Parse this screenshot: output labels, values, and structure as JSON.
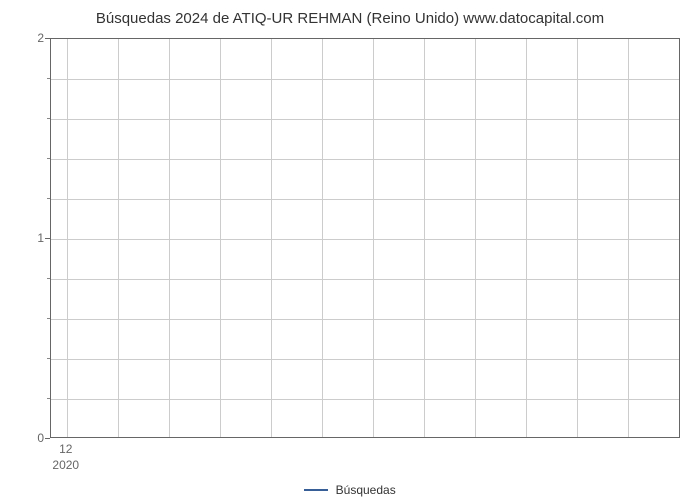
{
  "chart": {
    "type": "line",
    "title": "Búsquedas 2024 de ATIQ-UR REHMAN (Reino Unido) www.datocapital.com",
    "title_fontsize": 15,
    "title_color": "#333333",
    "background_color": "#ffffff",
    "plot_border_color": "#666666",
    "grid_color": "#cccccc",
    "y_axis": {
      "min": 0,
      "max": 2,
      "major_ticks": [
        0,
        1,
        2
      ],
      "minor_tick_count": 4,
      "label_color": "#666666",
      "label_fontsize": 12
    },
    "x_axis": {
      "tick_labels": [
        "12"
      ],
      "year_labels": [
        "2020"
      ],
      "tick_positions_pct": [
        2.5
      ],
      "vertical_gridlines_pct": [
        2.5,
        10.6,
        18.7,
        26.8,
        34.9,
        43.0,
        51.1,
        59.2,
        67.3,
        75.4,
        83.5,
        91.6
      ],
      "label_color": "#666666",
      "label_fontsize": 12
    },
    "series": [],
    "legend": {
      "label": "Búsquedas",
      "line_color": "#375e97",
      "text_color": "#333333",
      "fontsize": 12
    }
  }
}
